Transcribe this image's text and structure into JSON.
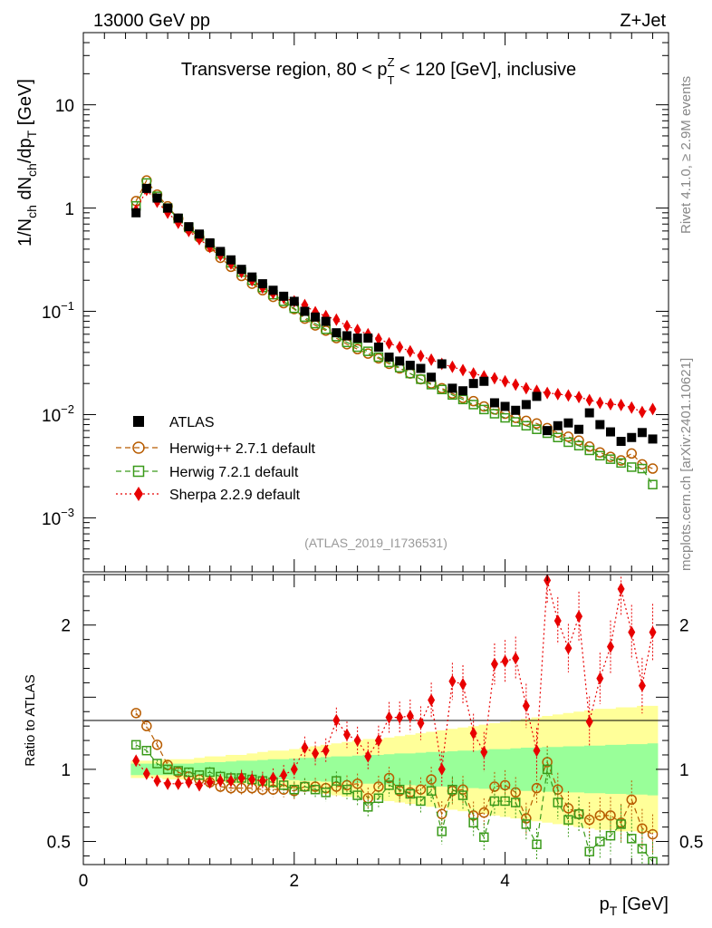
{
  "header": {
    "left": "13000 GeV pp",
    "right": "Z+Jet"
  },
  "side_labels": {
    "rivet": "Rivet 4.1.0, ≥ 2.9M events",
    "mcplots": "mcplots.cern.ch [arXiv:2401.10621]"
  },
  "chart_data": [
    {
      "type": "scatter",
      "panel": "main",
      "title": "Transverse region, 80 < pT^Z < 120 [GeV], inclusive",
      "ylabel": "1/N_ch dN_ch/dp_T [GeV]",
      "xlabel": "p_T [GeV]",
      "yscale": "log",
      "xlim": [
        0,
        5.55
      ],
      "ylim": [
        0.0003,
        50
      ],
      "watermark": "(ATLAS_2019_I1736531)",
      "x": [
        0.5,
        0.6,
        0.7,
        0.8,
        0.9,
        1.0,
        1.1,
        1.2,
        1.3,
        1.4,
        1.5,
        1.6,
        1.7,
        1.8,
        1.9,
        2.0,
        2.1,
        2.2,
        2.3,
        2.4,
        2.5,
        2.6,
        2.7,
        2.8,
        2.9,
        3.0,
        3.1,
        3.2,
        3.3,
        3.4,
        3.5,
        3.6,
        3.7,
        3.8,
        3.9,
        4.0,
        4.1,
        4.2,
        4.3,
        4.4,
        4.5,
        4.6,
        4.7,
        4.8,
        4.9,
        5.0,
        5.1,
        5.2,
        5.3,
        5.4
      ],
      "series": [
        {
          "name": "ATLAS",
          "marker": "filled-square",
          "color": "#000000",
          "values": [
            0.9,
            1.55,
            1.25,
            1.0,
            0.8,
            0.66,
            0.56,
            0.46,
            0.38,
            0.315,
            0.255,
            0.215,
            0.185,
            0.16,
            0.14,
            0.125,
            0.1,
            0.088,
            0.08,
            0.062,
            0.058,
            0.055,
            0.055,
            0.045,
            0.036,
            0.033,
            0.03,
            0.028,
            0.023,
            0.031,
            0.018,
            0.017,
            0.02,
            0.021,
            0.013,
            0.012,
            0.011,
            0.0125,
            0.015,
            0.007,
            0.0078,
            0.0083,
            0.0072,
            0.0104,
            0.008,
            0.0068,
            0.0055,
            0.006,
            0.0067,
            0.0058
          ]
        },
        {
          "name": "Herwig++ 2.7.1 default",
          "marker": "open-circle",
          "color": "#b85c00",
          "line": "dashed",
          "values": [
            1.17,
            1.85,
            1.35,
            1.04,
            0.79,
            0.63,
            0.52,
            0.42,
            0.33,
            0.27,
            0.22,
            0.185,
            0.16,
            0.138,
            0.12,
            0.105,
            0.085,
            0.073,
            0.065,
            0.055,
            0.048,
            0.043,
            0.039,
            0.035,
            0.031,
            0.028,
            0.025,
            0.022,
            0.02,
            0.018,
            0.016,
            0.0145,
            0.0135,
            0.012,
            0.0112,
            0.0102,
            0.0093,
            0.0087,
            0.0082,
            0.0074,
            0.0067,
            0.0061,
            0.0056,
            0.0049,
            0.0043,
            0.0039,
            0.0036,
            0.0042,
            0.0033,
            0.003
          ]
        },
        {
          "name": "Herwig 7.2.1 default",
          "marker": "open-square",
          "color": "#3a9a1a",
          "line": "dashed",
          "values": [
            1.05,
            1.75,
            1.3,
            1.0,
            0.79,
            0.65,
            0.54,
            0.45,
            0.36,
            0.295,
            0.24,
            0.2,
            0.17,
            0.145,
            0.125,
            0.107,
            0.088,
            0.076,
            0.067,
            0.057,
            0.05,
            0.045,
            0.041,
            0.036,
            0.032,
            0.0285,
            0.025,
            0.022,
            0.0195,
            0.0175,
            0.0155,
            0.014,
            0.0125,
            0.0112,
            0.0102,
            0.0093,
            0.0085,
            0.0078,
            0.0072,
            0.0066,
            0.006,
            0.0054,
            0.005,
            0.0045,
            0.004,
            0.0037,
            0.0034,
            0.0031,
            0.003,
            0.0021
          ]
        },
        {
          "name": "Sherpa 2.2.9 default",
          "marker": "filled-diamond",
          "color": "#e80000",
          "line": "dotted",
          "values": [
            0.95,
            1.5,
            1.15,
            0.9,
            0.72,
            0.6,
            0.5,
            0.42,
            0.35,
            0.29,
            0.24,
            0.2,
            0.17,
            0.15,
            0.135,
            0.125,
            0.115,
            0.098,
            0.09,
            0.083,
            0.072,
            0.066,
            0.06,
            0.054,
            0.049,
            0.045,
            0.041,
            0.037,
            0.034,
            0.031,
            0.029,
            0.027,
            0.025,
            0.0235,
            0.0225,
            0.021,
            0.0195,
            0.018,
            0.017,
            0.0162,
            0.0158,
            0.0153,
            0.0148,
            0.0138,
            0.013,
            0.0126,
            0.0124,
            0.0117,
            0.0106,
            0.0113
          ]
        }
      ]
    },
    {
      "type": "scatter",
      "panel": "ratio",
      "ylabel": "Ratio to ATLAS",
      "xlabel": "p_T [GeV]",
      "xlim": [
        0,
        5.55
      ],
      "ylim": [
        0.34,
        2.35
      ],
      "ytick_labels": [
        "0.5",
        "1",
        "2"
      ],
      "xtick_labels": [
        "0",
        "2",
        "4"
      ],
      "band_inner_halfwidth": [
        0.04,
        0.04,
        0.04,
        0.04,
        0.04,
        0.04,
        0.045,
        0.05,
        0.05,
        0.055,
        0.06,
        0.06,
        0.065,
        0.07,
        0.07,
        0.075,
        0.08,
        0.08,
        0.085,
        0.09,
        0.09,
        0.095,
        0.1,
        0.1,
        0.105,
        0.11,
        0.11,
        0.115,
        0.12,
        0.12,
        0.125,
        0.13,
        0.13,
        0.135,
        0.14,
        0.14,
        0.145,
        0.15,
        0.15,
        0.155,
        0.155,
        0.16,
        0.16,
        0.165,
        0.165,
        0.17,
        0.17,
        0.175,
        0.175,
        0.18
      ],
      "band_outer_halfwidth": [
        0.06,
        0.06,
        0.06,
        0.07,
        0.07,
        0.07,
        0.08,
        0.09,
        0.09,
        0.1,
        0.1,
        0.11,
        0.12,
        0.13,
        0.13,
        0.14,
        0.15,
        0.16,
        0.17,
        0.18,
        0.19,
        0.2,
        0.21,
        0.21,
        0.22,
        0.23,
        0.24,
        0.25,
        0.26,
        0.27,
        0.28,
        0.29,
        0.3,
        0.31,
        0.32,
        0.33,
        0.34,
        0.35,
        0.36,
        0.37,
        0.38,
        0.39,
        0.4,
        0.41,
        0.42,
        0.42,
        0.43,
        0.43,
        0.44,
        0.44
      ],
      "series": [
        {
          "name": "Herwig++ 2.7.1 default",
          "values": [
            1.39,
            1.3,
            1.17,
            1.03,
            0.98,
            0.95,
            0.93,
            0.91,
            0.88,
            0.87,
            0.87,
            0.87,
            0.86,
            0.86,
            0.86,
            0.85,
            0.88,
            0.88,
            0.87,
            0.88,
            0.89,
            0.9,
            0.8,
            0.88,
            0.94,
            0.85,
            0.84,
            0.86,
            0.93,
            0.69,
            0.85,
            0.86,
            0.68,
            0.7,
            0.88,
            0.89,
            0.84,
            0.66,
            0.87,
            1.05,
            0.86,
            0.73,
            0.69,
            0.65,
            0.68,
            0.68,
            0.63,
            0.79,
            0.59,
            0.55
          ]
        },
        {
          "name": "Herwig 7.2.1 default",
          "values": [
            1.17,
            1.13,
            1.04,
            1.0,
            0.99,
            0.98,
            0.96,
            0.98,
            0.95,
            0.94,
            0.94,
            0.93,
            0.92,
            0.91,
            0.89,
            0.86,
            0.88,
            0.86,
            0.84,
            0.92,
            0.86,
            0.82,
            0.74,
            0.8,
            0.89,
            0.86,
            0.83,
            0.78,
            0.85,
            0.57,
            0.86,
            0.82,
            0.63,
            0.53,
            0.78,
            0.78,
            0.77,
            0.62,
            0.48,
            1.0,
            0.77,
            0.65,
            0.69,
            0.43,
            0.5,
            0.54,
            0.62,
            0.52,
            0.45,
            0.36
          ]
        },
        {
          "name": "Sherpa 2.2.9 default",
          "values": [
            1.06,
            0.97,
            0.92,
            0.9,
            0.9,
            0.91,
            0.89,
            0.91,
            0.92,
            0.92,
            0.94,
            0.93,
            0.92,
            0.94,
            0.96,
            1.0,
            1.15,
            1.11,
            1.13,
            1.34,
            1.24,
            1.2,
            1.09,
            1.2,
            1.36,
            1.36,
            1.37,
            1.32,
            1.48,
            1.0,
            1.61,
            1.59,
            1.25,
            1.12,
            1.73,
            1.75,
            1.77,
            1.44,
            1.13,
            2.31,
            2.03,
            1.84,
            2.06,
            1.33,
            1.63,
            1.85,
            2.25,
            1.95,
            1.58,
            1.95
          ]
        }
      ]
    }
  ]
}
